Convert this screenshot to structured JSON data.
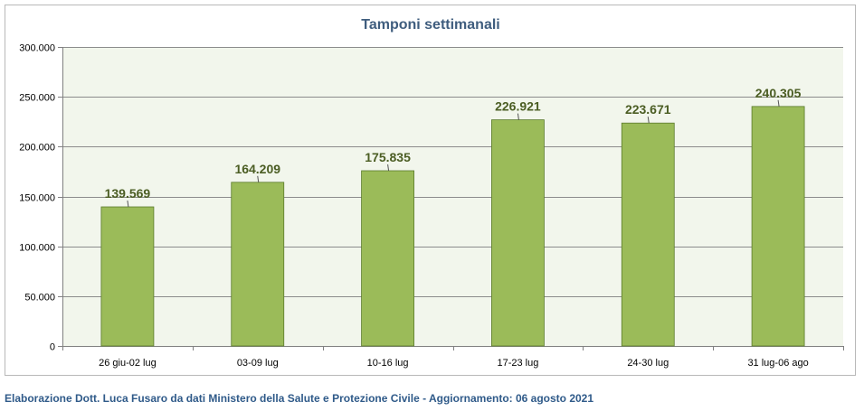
{
  "chart_data": {
    "type": "bar",
    "title": "Tamponi settimanali",
    "categories": [
      "26 giu-02 lug",
      "03-09 lug",
      "10-16 lug",
      "17-23 lug",
      "24-30 lug",
      "31 lug-06 ago"
    ],
    "values": [
      139569,
      164209,
      175835,
      226921,
      223671,
      240305
    ],
    "value_labels": [
      "139.569",
      "164.209",
      "175.835",
      "226.921",
      "223.671",
      "240.305"
    ],
    "xlabel": "",
    "ylabel": "",
    "ylim": [
      0,
      300000
    ],
    "yticks": [
      0,
      50000,
      100000,
      150000,
      200000,
      250000,
      300000
    ],
    "ytick_labels": [
      "0",
      "50.000",
      "100.000",
      "150.000",
      "200.000",
      "250.000",
      "300.000"
    ],
    "grid": true,
    "legend": "none",
    "colors": {
      "bar": "#9bbb59",
      "bar_border": "#5a7a2b",
      "plot_bg": "#f2f6ec",
      "grid": "#8c8c8c",
      "title": "#3f5d7e",
      "data_label": "#4b5d23"
    }
  },
  "footer": {
    "text": "Elaborazione Dott. Luca Fusaro da dati Ministero della Salute e Protezione Civile - Aggiornamento: 06 agosto 2021",
    "color": "#2f5a89"
  }
}
